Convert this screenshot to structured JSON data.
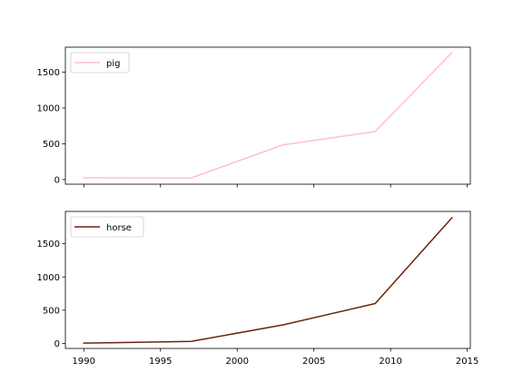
{
  "chart_data": [
    {
      "type": "line",
      "x": [
        1990,
        1997,
        2003,
        2009,
        2014
      ],
      "series": [
        {
          "name": "pig",
          "values": [
            25,
            22,
            485,
            670,
            1775
          ],
          "color": "#ffc0cb"
        }
      ],
      "xlim": [
        1988.8,
        2015.2
      ],
      "ylim": [
        -65,
        1850
      ],
      "yticks": [
        0,
        500,
        1000,
        1500
      ],
      "xticks": [
        1990,
        1995,
        2000,
        2005,
        2010,
        2015
      ],
      "show_xtick_labels": false,
      "legend": "upper-left",
      "grid": false
    },
    {
      "type": "line",
      "x": [
        1990,
        1997,
        2003,
        2009,
        2014
      ],
      "series": [
        {
          "name": "horse",
          "values": [
            5,
            30,
            280,
            600,
            1890
          ],
          "color": "#6b2608"
        }
      ],
      "xlim": [
        1988.8,
        2015.2
      ],
      "ylim": [
        -75,
        1985
      ],
      "yticks": [
        0,
        500,
        1000,
        1500
      ],
      "xticks": [
        1990,
        1995,
        2000,
        2005,
        2010,
        2015
      ],
      "show_xtick_labels": true,
      "legend": "upper-left",
      "grid": false
    }
  ]
}
